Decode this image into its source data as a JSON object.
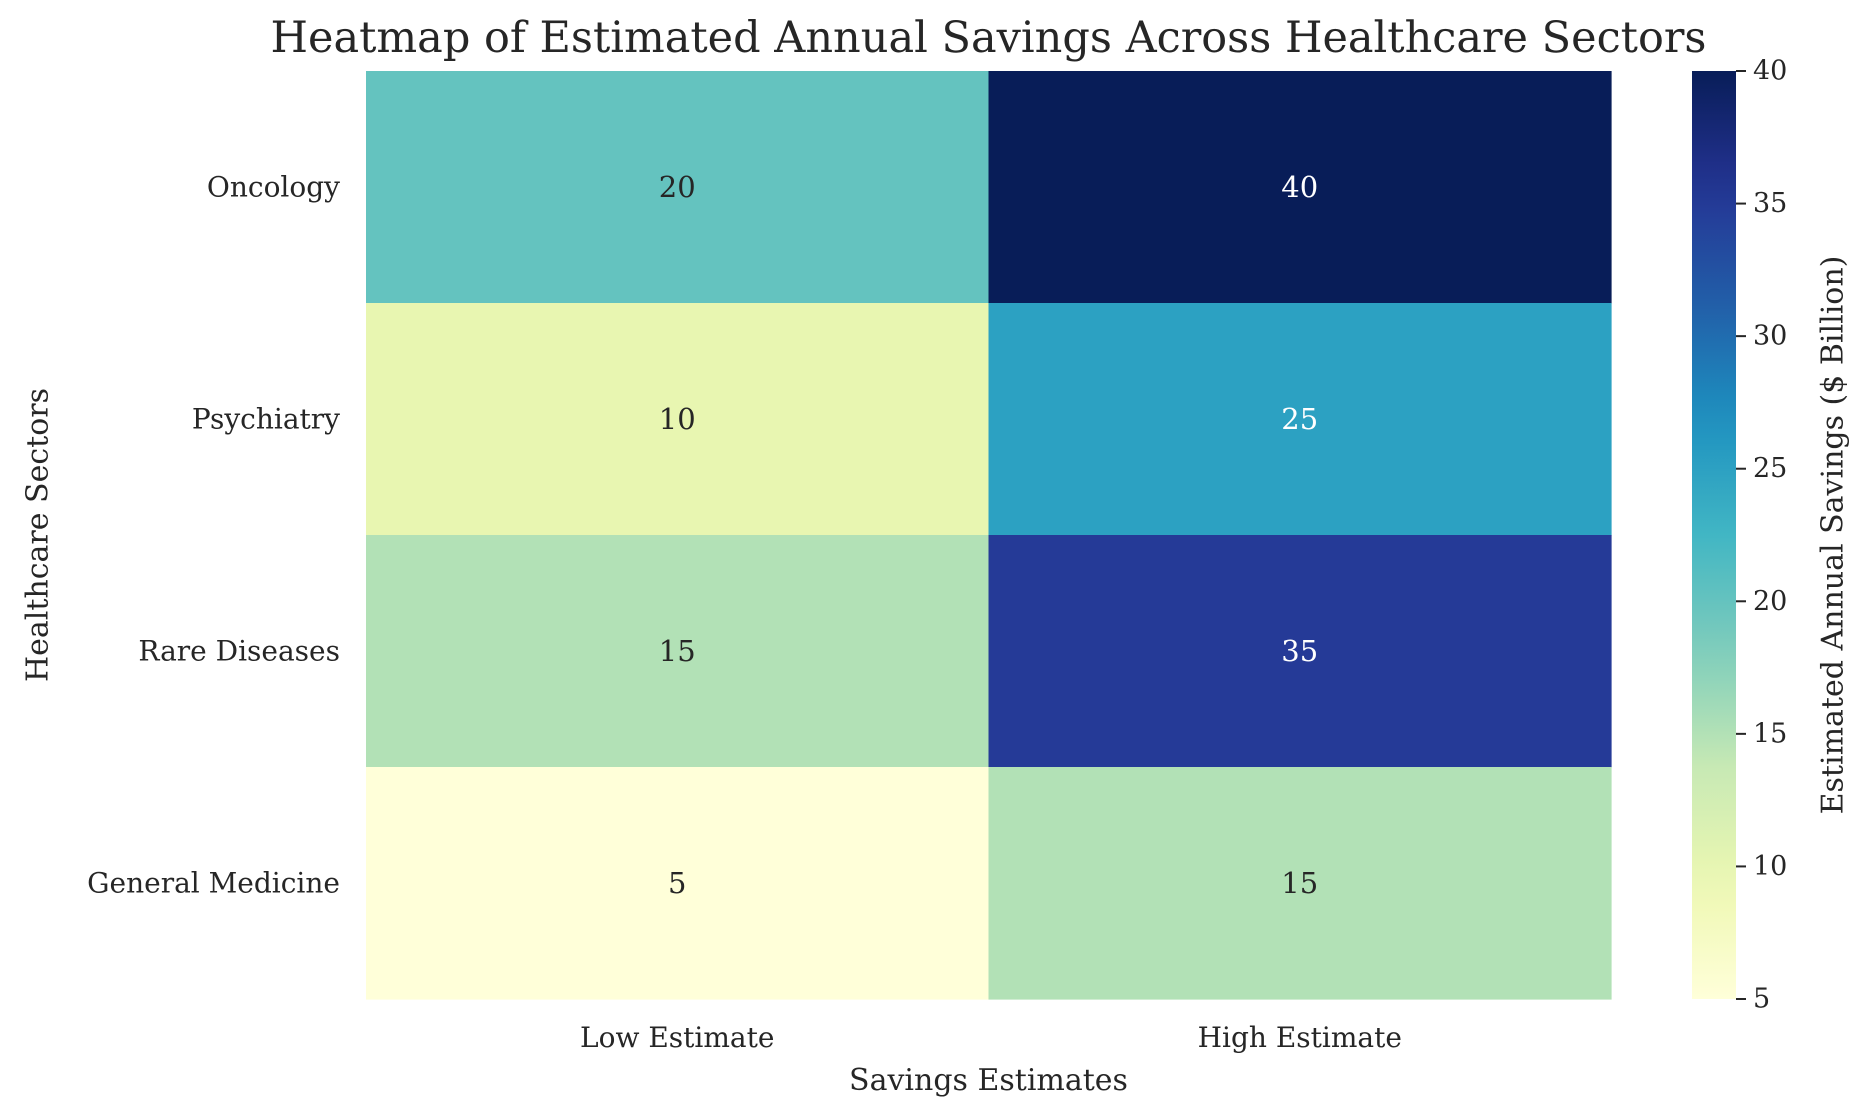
{
  "chart_data": {
    "type": "heatmap",
    "title": "Heatmap of Estimated Annual Savings Across Healthcare Sectors",
    "xlabel": "Savings Estimates",
    "ylabel": "Healthcare Sectors",
    "columns": [
      "Low Estimate",
      "High Estimate"
    ],
    "rows": [
      "Oncology",
      "Psychiatry",
      "Rare Diseases",
      "General Medicine"
    ],
    "values": [
      [
        20,
        40
      ],
      [
        10,
        25
      ],
      [
        15,
        35
      ],
      [
        5,
        15
      ]
    ],
    "colorbar": {
      "label": "Estimated Annual Savings ($ Billion)",
      "min": 5,
      "max": 40,
      "ticks": [
        5,
        10,
        15,
        20,
        25,
        30,
        35,
        40
      ]
    },
    "colormap": "YlGnBu",
    "annotated": true
  }
}
